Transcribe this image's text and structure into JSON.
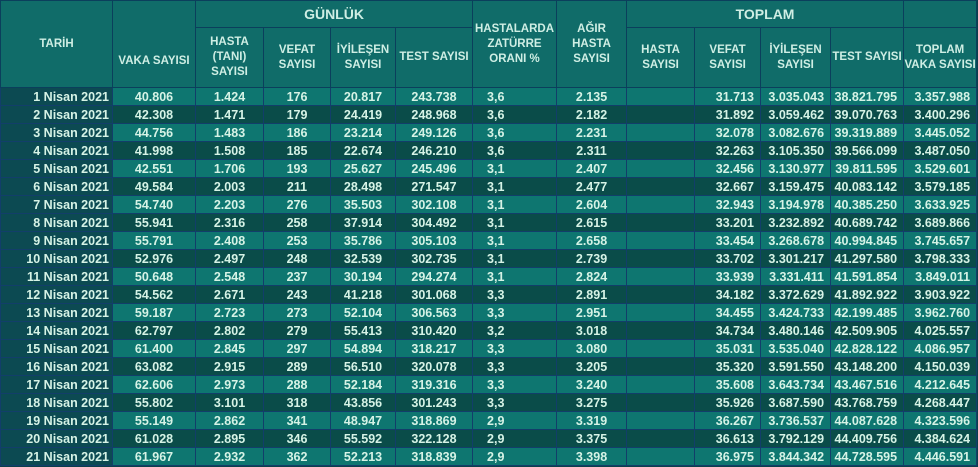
{
  "headers": {
    "tarih": "TARİH",
    "vaka": "VAKA SAYISI",
    "gunluk": "GÜNLÜK",
    "hasta_tani": "HASTA (TANI) SAYISI",
    "vefat": "VEFAT SAYISI",
    "iyilesen": "İYİLEŞEN SAYISI",
    "test": "TEST SAYISI",
    "zaturre": "HASTALARDA ZATÜRRE ORANI %",
    "agir": "AĞIR HASTA SAYISI",
    "toplam": "TOPLAM",
    "t_hasta": "HASTA SAYISI",
    "t_vefat": "VEFAT SAYISI",
    "t_iyilesen": "İYİLEŞEN SAYISI",
    "t_test": "TEST SAYISI",
    "t_vaka": "TOPLAM VAKA SAYISI"
  },
  "rows": [
    [
      "1 Nisan 2021",
      "40.806",
      "1.424",
      "176",
      "20.817",
      "243.738",
      "3,6",
      "2.135",
      "",
      "31.713",
      "3.035.043",
      "38.821.795",
      "3.357.988"
    ],
    [
      "2 Nisan 2021",
      "42.308",
      "1.471",
      "179",
      "24.419",
      "248.968",
      "3,6",
      "2.182",
      "",
      "31.892",
      "3.059.462",
      "39.070.763",
      "3.400.296"
    ],
    [
      "3 Nisan 2021",
      "44.756",
      "1.483",
      "186",
      "23.214",
      "249.126",
      "3,6",
      "2.231",
      "",
      "32.078",
      "3.082.676",
      "39.319.889",
      "3.445.052"
    ],
    [
      "4 Nisan 2021",
      "41.998",
      "1.508",
      "185",
      "22.674",
      "246.210",
      "3,6",
      "2.311",
      "",
      "32.263",
      "3.105.350",
      "39.566.099",
      "3.487.050"
    ],
    [
      "5 Nisan 2021",
      "42.551",
      "1.706",
      "193",
      "25.627",
      "245.496",
      "3,1",
      "2.407",
      "",
      "32.456",
      "3.130.977",
      "39.811.595",
      "3.529.601"
    ],
    [
      "6 Nisan 2021",
      "49.584",
      "2.003",
      "211",
      "28.498",
      "271.547",
      "3,1",
      "2.477",
      "",
      "32.667",
      "3.159.475",
      "40.083.142",
      "3.579.185"
    ],
    [
      "7 Nisan 2021",
      "54.740",
      "2.203",
      "276",
      "35.503",
      "302.108",
      "3,1",
      "2.604",
      "",
      "32.943",
      "3.194.978",
      "40.385.250",
      "3.633.925"
    ],
    [
      "8 Nisan 2021",
      "55.941",
      "2.316",
      "258",
      "37.914",
      "304.492",
      "3,1",
      "2.615",
      "",
      "33.201",
      "3.232.892",
      "40.689.742",
      "3.689.866"
    ],
    [
      "9 Nisan 2021",
      "55.791",
      "2.408",
      "253",
      "35.786",
      "305.103",
      "3,1",
      "2.658",
      "",
      "33.454",
      "3.268.678",
      "40.994.845",
      "3.745.657"
    ],
    [
      "10 Nisan 2021",
      "52.976",
      "2.497",
      "248",
      "32.539",
      "302.735",
      "3,1",
      "2.739",
      "",
      "33.702",
      "3.301.217",
      "41.297.580",
      "3.798.333"
    ],
    [
      "11 Nisan 2021",
      "50.648",
      "2.548",
      "237",
      "30.194",
      "294.274",
      "3,1",
      "2.824",
      "",
      "33.939",
      "3.331.411",
      "41.591.854",
      "3.849.011"
    ],
    [
      "12 Nisan 2021",
      "54.562",
      "2.671",
      "243",
      "41.218",
      "301.068",
      "3,3",
      "2.891",
      "",
      "34.182",
      "3.372.629",
      "41.892.922",
      "3.903.922"
    ],
    [
      "13 Nisan 2021",
      "59.187",
      "2.723",
      "273",
      "52.104",
      "306.563",
      "3,3",
      "2.951",
      "",
      "34.455",
      "3.424.733",
      "42.199.485",
      "3.962.760"
    ],
    [
      "14 Nisan 2021",
      "62.797",
      "2.802",
      "279",
      "55.413",
      "310.420",
      "3,2",
      "3.018",
      "",
      "34.734",
      "3.480.146",
      "42.509.905",
      "4.025.557"
    ],
    [
      "15 Nisan 2021",
      "61.400",
      "2.845",
      "297",
      "54.894",
      "318.217",
      "3,3",
      "3.080",
      "",
      "35.031",
      "3.535.040",
      "42.828.122",
      "4.086.957"
    ],
    [
      "16 Nisan 2021",
      "63.082",
      "2.915",
      "289",
      "56.510",
      "320.078",
      "3,3",
      "3.205",
      "",
      "35.320",
      "3.591.550",
      "43.148.200",
      "4.150.039"
    ],
    [
      "17 Nisan 2021",
      "62.606",
      "2.973",
      "288",
      "52.184",
      "319.316",
      "3,3",
      "3.240",
      "",
      "35.608",
      "3.643.734",
      "43.467.516",
      "4.212.645"
    ],
    [
      "18 Nisan 2021",
      "55.802",
      "3.101",
      "318",
      "43.856",
      "301.243",
      "3,3",
      "3.275",
      "",
      "35.926",
      "3.687.590",
      "43.768.759",
      "4.268.447"
    ],
    [
      "19 Nisan 2021",
      "55.149",
      "2.862",
      "341",
      "48.947",
      "318.869",
      "2,9",
      "3.319",
      "",
      "36.267",
      "3.736.537",
      "44.087.628",
      "4.323.596"
    ],
    [
      "20 Nisan 2021",
      "61.028",
      "2.895",
      "346",
      "55.592",
      "322.128",
      "2,9",
      "3.375",
      "",
      "36.613",
      "3.792.129",
      "44.409.756",
      "4.384.624"
    ],
    [
      "21 Nisan 2021",
      "61.967",
      "2.932",
      "362",
      "52.213",
      "318.839",
      "2,9",
      "3.398",
      "",
      "36.975",
      "3.844.342",
      "44.728.595",
      "4.446.591"
    ]
  ]
}
